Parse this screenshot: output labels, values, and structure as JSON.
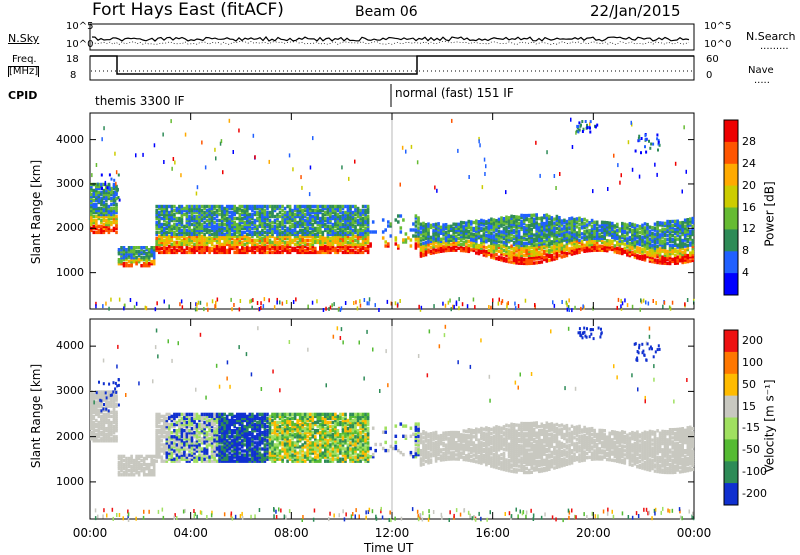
{
  "header": {
    "station": "Fort Hays East (fitACF)",
    "beam": "Beam 06",
    "date": "22/Jan/2015"
  },
  "top_panels": {
    "noise_label": "N.Sky",
    "noise_right_label": "N.Search",
    "noise_ticks": [
      "10^5",
      "10^0"
    ],
    "noise_right_ticks": [
      "10^5",
      "10^0"
    ],
    "freq_label_1": "Freq.",
    "freq_label_2": "[MHz]",
    "freq_ticks": [
      "18",
      "8"
    ],
    "nave_label": "Nave",
    "nave_ticks": [
      "60",
      "0"
    ],
    "cpid_label": "CPID",
    "cpid_segments": [
      {
        "name": "themis 3300 IF",
        "start_hour": 0
      },
      {
        "name": "normal (fast) 151 IF",
        "start_hour": 12
      }
    ]
  },
  "chart_data": [
    {
      "type": "heatmap",
      "variable": "Power",
      "ylabel": "Slant Range [km]",
      "colorbar_label": "Power [dB]",
      "ylim": [
        180,
        4600
      ],
      "yticks": [
        1000,
        2000,
        3000,
        4000
      ],
      "xticks": [
        "00:00",
        "04:00",
        "08:00",
        "12:00",
        "16:00",
        "20:00",
        "00:00"
      ],
      "colorbar_ticks": [
        "28",
        "24",
        "20",
        "16",
        "12",
        "8",
        "4"
      ],
      "colorscale": [
        "#0000ff",
        "#2060ff",
        "#2e8b57",
        "#66bb33",
        "#cccc00",
        "#ffaa00",
        "#ff5500",
        "#ee0000"
      ],
      "echo_bands": [
        {
          "t": [
            1.0,
            2.6
          ],
          "r": [
            1100,
            1500
          ],
          "level": 0.75
        },
        {
          "t": [
            2.6,
            11.0
          ],
          "r": [
            1400,
            2300
          ],
          "level": 0.55
        },
        {
          "t": [
            5.0,
            7.0
          ],
          "r": [
            1800,
            2500
          ],
          "level": 0.7
        },
        {
          "t": [
            13.0,
            24.0
          ],
          "r": [
            1200,
            2200
          ],
          "level": 0.8
        }
      ]
    },
    {
      "type": "heatmap",
      "variable": "Velocity",
      "ylabel": "Slant Range [km]",
      "colorbar_label": "Velocity [m s⁻¹]",
      "ylim": [
        180,
        4600
      ],
      "yticks": [
        1000,
        2000,
        3000,
        4000
      ],
      "xticks": [
        "00:00",
        "04:00",
        "08:00",
        "12:00",
        "16:00",
        "20:00",
        "00:00"
      ],
      "xlabel": "Time UT",
      "colorbar_ticks": [
        "200",
        "100",
        "50",
        "15",
        "-15",
        "-50",
        "-100",
        "-200"
      ],
      "colorscale": [
        "#1030d0",
        "#2e8b57",
        "#55bb33",
        "#a0e060",
        "#c8c8c0",
        "#ffbb00",
        "#ff7700",
        "#ee1111"
      ]
    }
  ]
}
